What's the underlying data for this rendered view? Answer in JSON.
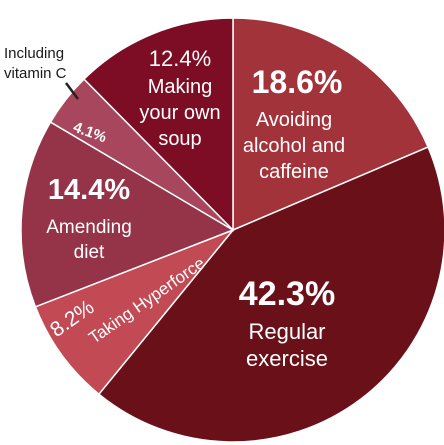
{
  "chart_data": {
    "type": "pie",
    "title": "",
    "slices": [
      {
        "label": "Avoiding alcohol and caffeine",
        "pct_label": "18.6%",
        "value": 18.6,
        "color": "#a3333a"
      },
      {
        "label": "Regular exercise",
        "pct_label": "42.3%",
        "value": 42.3,
        "color": "#6a1018"
      },
      {
        "label": "Taking Hyperforce",
        "pct_label": "8.2%",
        "value": 8.2,
        "color": "#c24a55"
      },
      {
        "label": "Amending diet",
        "pct_label": "14.4%",
        "value": 14.4,
        "color": "#953448"
      },
      {
        "label": "Including vitamin C",
        "pct_label": "4.1%",
        "value": 4.1,
        "color": "#a8465d"
      },
      {
        "label": "Making your own soup",
        "pct_label": "12.4%",
        "value": 12.4,
        "color": "#7c0d24"
      }
    ]
  }
}
